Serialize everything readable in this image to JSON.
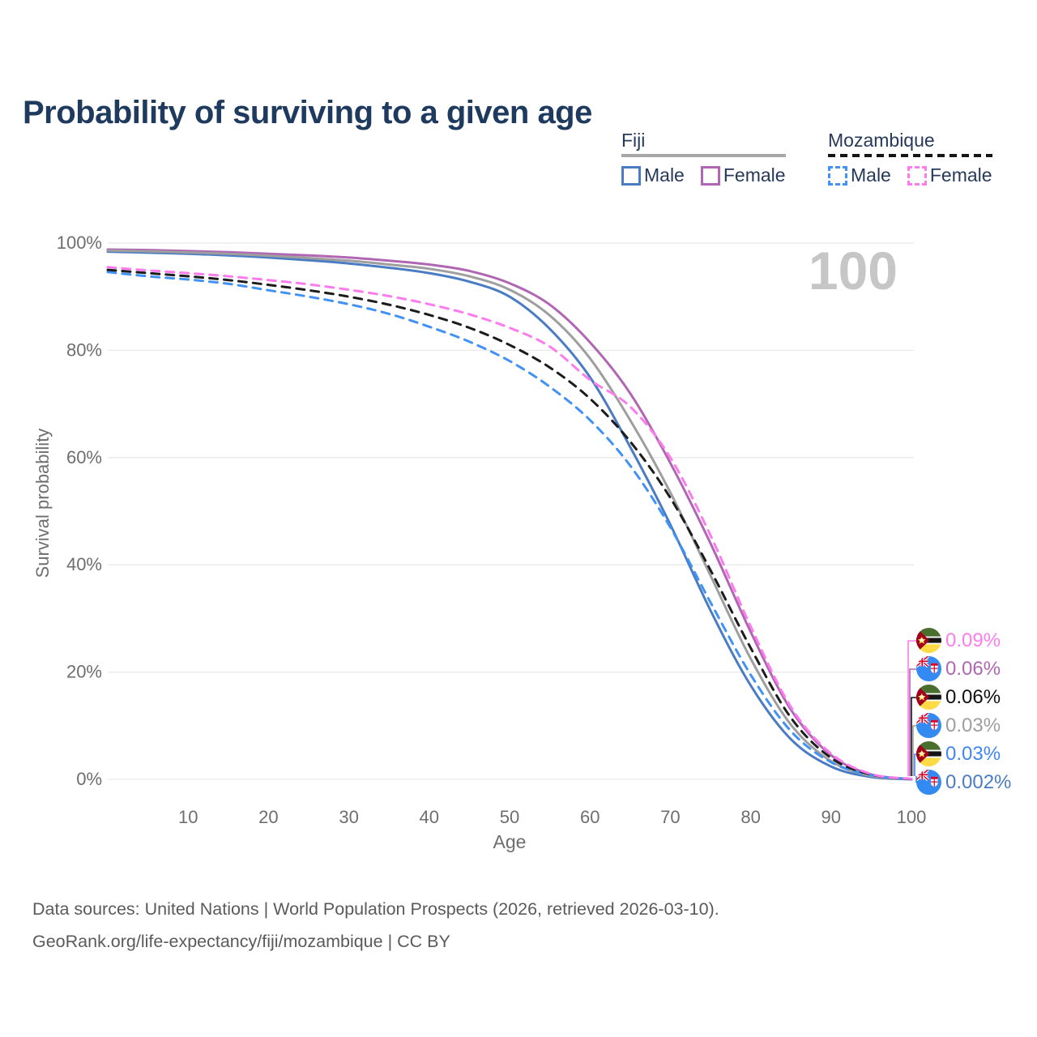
{
  "title": "Probability of surviving to a given age",
  "watermark": "100",
  "legend": {
    "groups": [
      {
        "country": "Fiji",
        "line_style": "solid",
        "items": [
          {
            "label": "Male",
            "color": "#4a7cc4"
          },
          {
            "label": "Female",
            "color": "#b066b3"
          }
        ]
      },
      {
        "country": "Mozambique",
        "line_style": "dashed",
        "items": [
          {
            "label": "Male",
            "color": "#4292f5"
          },
          {
            "label": "Female",
            "color": "#fd7ced"
          }
        ]
      }
    ]
  },
  "axes": {
    "y_title": "Survival probability",
    "x_title": "Age",
    "y_ticks": [
      {
        "label": "100%",
        "value": 100
      },
      {
        "label": "80%",
        "value": 80
      },
      {
        "label": "60%",
        "value": 60
      },
      {
        "label": "40%",
        "value": 40
      },
      {
        "label": "20%",
        "value": 20
      },
      {
        "label": "0%",
        "value": 0
      }
    ],
    "x_ticks": [
      {
        "label": "10",
        "value": 10
      },
      {
        "label": "20",
        "value": 20
      },
      {
        "label": "30",
        "value": 30
      },
      {
        "label": "40",
        "value": 40
      },
      {
        "label": "50",
        "value": 50
      },
      {
        "label": "60",
        "value": 60
      },
      {
        "label": "70",
        "value": 70
      },
      {
        "label": "80",
        "value": 80
      },
      {
        "label": "90",
        "value": 90
      },
      {
        "label": "100",
        "value": 100
      }
    ]
  },
  "chart_data": {
    "type": "line",
    "title": "Probability of surviving to a given age",
    "xlabel": "Age",
    "ylabel": "Survival probability",
    "xlim": [
      0,
      100
    ],
    "ylim": [
      0,
      100
    ],
    "grid": "horizontal",
    "legend_position": "top-right",
    "x": [
      0,
      5,
      10,
      15,
      20,
      25,
      30,
      35,
      40,
      45,
      50,
      55,
      60,
      65,
      70,
      75,
      80,
      85,
      90,
      95,
      100
    ],
    "series": [
      {
        "name": "Fiji Male",
        "key": "fiji_male",
        "style": "solid",
        "color": "#4a7cc4",
        "values": [
          98.4,
          98.2,
          98.0,
          97.7,
          97.3,
          96.8,
          96.2,
          95.4,
          94.4,
          92.8,
          90.0,
          84.0,
          75.0,
          62.0,
          47.5,
          31.5,
          17.5,
          7.5,
          2.4,
          0.45,
          0.002
        ]
      },
      {
        "name": "Fiji Female",
        "key": "fiji_female",
        "style": "solid",
        "color": "#b066b3",
        "values": [
          98.8,
          98.7,
          98.5,
          98.3,
          98.0,
          97.7,
          97.3,
          96.7,
          96.0,
          94.8,
          92.5,
          88.5,
          81.5,
          72.0,
          59.0,
          44.0,
          27.5,
          13.0,
          4.5,
          0.9,
          0.06
        ]
      },
      {
        "name": "Fiji Both sexes",
        "key": "fiji_total",
        "style": "solid",
        "color": "#9e9e9e",
        "values": [
          98.6,
          98.45,
          98.25,
          98.0,
          97.65,
          97.2,
          96.7,
          96.0,
          95.2,
          93.8,
          91.3,
          86.5,
          78.5,
          67.0,
          53.5,
          38.0,
          22.5,
          10.2,
          3.4,
          0.65,
          0.03
        ]
      },
      {
        "name": "Mozambique Male",
        "key": "moz_male",
        "style": "dashed",
        "color": "#4292f5",
        "values": [
          94.6,
          93.8,
          93.2,
          92.4,
          91.2,
          90.0,
          88.6,
          86.8,
          84.4,
          81.6,
          78.0,
          73.2,
          67.0,
          58.5,
          47.0,
          33.0,
          19.5,
          9.0,
          3.2,
          0.8,
          0.03
        ]
      },
      {
        "name": "Mozambique Both sexes",
        "key": "moz_total",
        "style": "dashed",
        "color": "#1c1c1c",
        "values": [
          95.0,
          94.4,
          93.8,
          93.1,
          92.2,
          91.2,
          90.0,
          88.5,
          86.6,
          84.2,
          81.0,
          76.8,
          71.0,
          63.0,
          52.5,
          39.0,
          24.5,
          11.5,
          4.0,
          0.9,
          0.06
        ]
      },
      {
        "name": "Mozambique Female",
        "key": "moz_female",
        "style": "dashed",
        "color": "#fd7ced",
        "values": [
          95.5,
          94.9,
          94.4,
          93.8,
          93.1,
          92.3,
          91.3,
          90.1,
          88.6,
          86.7,
          84.2,
          80.7,
          74.5,
          69.5,
          60.0,
          45.5,
          28.5,
          13.5,
          4.8,
          1.0,
          0.09
        ]
      }
    ]
  },
  "end_labels": [
    {
      "country": "mozambique",
      "series": "moz_female",
      "value": "0.09%",
      "color": "#fd7ced"
    },
    {
      "country": "fiji",
      "series": "fiji_female",
      "value": "0.06%",
      "color": "#b066b3"
    },
    {
      "country": "mozambique",
      "series": "moz_total",
      "value": "0.06%",
      "color": "#111111"
    },
    {
      "country": "fiji",
      "series": "fiji_total",
      "value": "0.03%",
      "color": "#9e9e9e"
    },
    {
      "country": "mozambique",
      "series": "moz_male",
      "value": "0.03%",
      "color": "#3f86f4"
    },
    {
      "country": "fiji",
      "series": "fiji_male",
      "value": "0.002%",
      "color": "#4a7cc4"
    }
  ],
  "footer": {
    "line1": "Data sources: United Nations | World Population Prospects (2026, retrieved 2026-03-10).",
    "line2": "GeoRank.org/life-expectancy/fiji/mozambique | CC BY"
  },
  "colors": {
    "title": "#1e3a5f",
    "axis_text": "#6e6e6e",
    "gridline": "#e9e9e9",
    "watermark": "#c6c6c6",
    "footer_text": "#5a5a5a",
    "legend_text": "#26395a",
    "fiji_underline": "#a8a8a8",
    "mozambique_underline": "#151515"
  }
}
